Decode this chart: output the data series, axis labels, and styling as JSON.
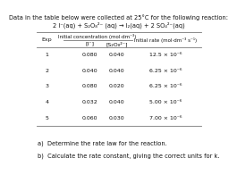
{
  "title_line1": "Data in the table below were collected at 25°C for the following reaction:",
  "title_line2": "2 I⁻(aq) + S₂O₈²⁻ (aq) → I₂(aq) + 2 SO₄²⁻(aq)",
  "col_header_group": "Initial concentration (mol·dm⁻³)",
  "col_header_rate": "Initial rate (mol·dm⁻³ s⁻¹)",
  "col1_header": "Exp",
  "col2_header": "[I⁻]",
  "col3_header": "[S₂O₈²⁻]",
  "rows": [
    [
      "1",
      "0.080",
      "0.040",
      "12.5 × 10⁻⁶"
    ],
    [
      "2",
      "0.040",
      "0.040",
      "6.25 × 10⁻⁶"
    ],
    [
      "3",
      "0.080",
      "0.020",
      "6.25 × 10⁻⁶"
    ],
    [
      "4",
      "0.032",
      "0.040",
      "5.00 × 10⁻⁶"
    ],
    [
      "5",
      "0.060",
      "0.030",
      "7.00 × 10⁻⁶"
    ]
  ],
  "question_a": "a)  Determine the rate law for the reaction.",
  "question_b": "b)  Calculate the rate constant, giving the correct units for k.",
  "bg_color": "#ffffff",
  "text_color": "#111111",
  "line_color": "#777777",
  "title_fontsize": 4.8,
  "header_fontsize": 4.5,
  "cell_fontsize": 4.5,
  "question_fontsize": 4.8
}
